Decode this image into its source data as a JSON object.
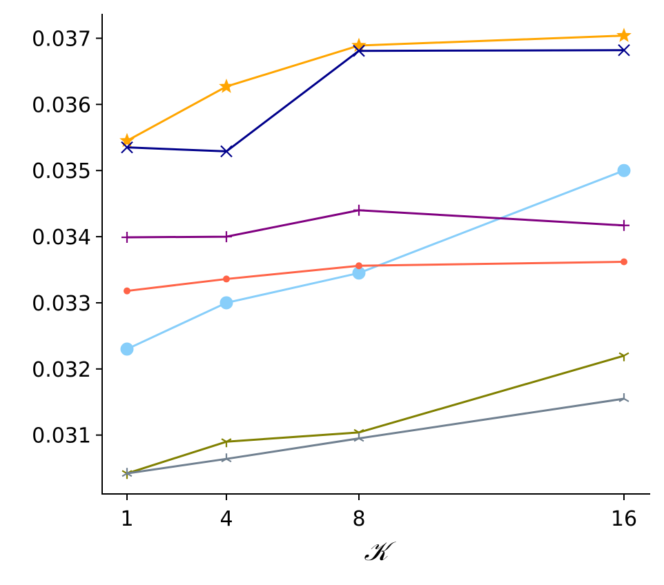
{
  "chart_data": {
    "type": "line",
    "title": "",
    "xlabel": "𝒦",
    "ylabel": "",
    "x": [
      1,
      4,
      8,
      16
    ],
    "xticks": [
      "1",
      "4",
      "8",
      "16"
    ],
    "yticks": [
      "0.031",
      "0.032",
      "0.033",
      "0.034",
      "0.035",
      "0.036",
      "0.037"
    ],
    "xlim": [
      0.25,
      16.75
    ],
    "ylim": [
      0.03011,
      0.03737
    ],
    "grid": false,
    "legend": "none",
    "series": [
      {
        "color": "#FFA500",
        "marker": "star",
        "values": [
          0.03545,
          0.03627,
          0.03689,
          0.03704
        ]
      },
      {
        "color": "#00008B",
        "marker": "x",
        "values": [
          0.03535,
          0.03529,
          0.03681,
          0.03682
        ]
      },
      {
        "color": "#87CEFA",
        "marker": "circle",
        "values": [
          0.0323,
          0.033,
          0.03345,
          0.035
        ]
      },
      {
        "color": "#800080",
        "marker": "plus",
        "values": [
          0.03399,
          0.034,
          0.0344,
          0.03417
        ]
      },
      {
        "color": "#FF6347",
        "marker": "dot",
        "values": [
          0.03318,
          0.03336,
          0.03356,
          0.03362
        ]
      },
      {
        "color": "#808000",
        "marker": "tri_down",
        "values": [
          0.03042,
          0.0309,
          0.03104,
          0.0322
        ]
      },
      {
        "color": "#708090",
        "marker": "tri_up",
        "values": [
          0.03042,
          0.03064,
          0.03095,
          0.03155
        ]
      }
    ]
  }
}
